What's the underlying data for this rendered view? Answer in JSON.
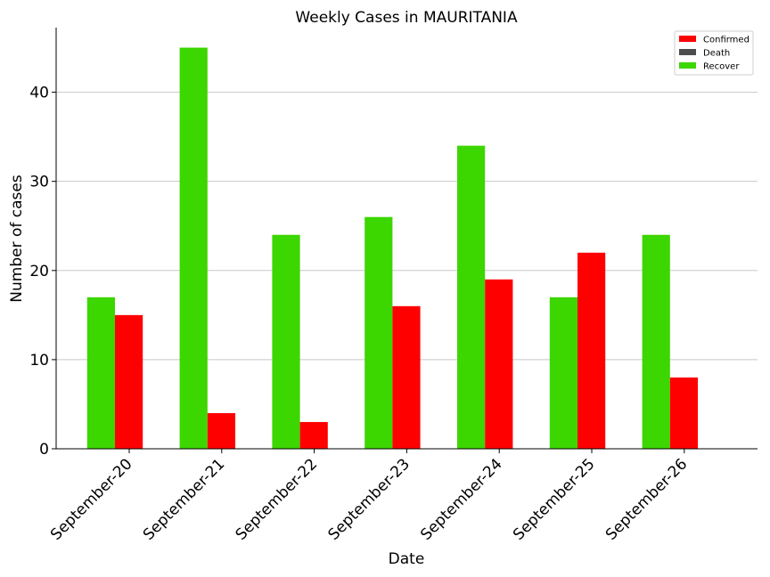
{
  "chart_data": {
    "type": "bar",
    "title": "Weekly Cases in MAURITANIA",
    "xlabel": "Date",
    "ylabel": "Number of cases",
    "categories": [
      "September-20",
      "September-21",
      "September-22",
      "September-23",
      "September-24",
      "September-25",
      "September-26"
    ],
    "series": [
      {
        "name": "Confirmed",
        "color": "#ff0000",
        "values": [
          15,
          4,
          3,
          16,
          19,
          22,
          8
        ]
      },
      {
        "name": "Death",
        "color": "#4d4d4d",
        "values": [
          0,
          0,
          0,
          0,
          0,
          0,
          0
        ]
      },
      {
        "name": "Recover",
        "color": "#3cd600",
        "values": [
          17,
          45,
          24,
          26,
          34,
          17,
          24
        ]
      }
    ],
    "ylim": [
      0,
      47.25
    ],
    "yticks": [
      0,
      10,
      20,
      30,
      40
    ],
    "grid": "horizontal",
    "legend": "top-right"
  }
}
